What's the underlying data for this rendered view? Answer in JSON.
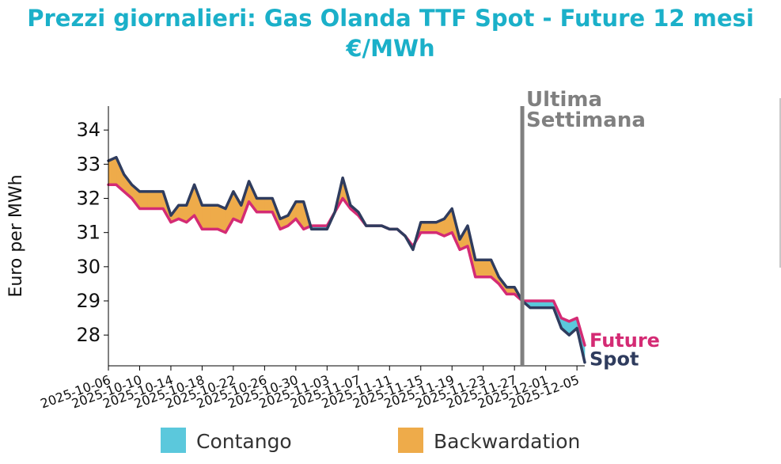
{
  "title": {
    "line1": "Prezzi giornalieri: Gas Olanda TTF Spot - Future 12 mesi",
    "line2": "€/MWh"
  },
  "chart_data": {
    "type": "area",
    "ylabel": "Euro per MWh",
    "y_ticks": [
      28,
      29,
      30,
      31,
      32,
      33,
      34
    ],
    "ylim": [
      27.1,
      34.7
    ],
    "x_range": [
      "2025-10-06",
      "2025-12-06"
    ],
    "x_tick_labels": [
      "2025-10-06",
      "2025-10-10",
      "2025-10-14",
      "2025-10-18",
      "2025-10-22",
      "2025-10-26",
      "2025-10-30",
      "2025-11-03",
      "2025-11-07",
      "2025-11-11",
      "2025-11-15",
      "2025-11-19",
      "2025-11-23",
      "2025-11-27",
      "2025-12-01",
      "2025-12-05"
    ],
    "marker": {
      "date": "2025-11-28",
      "label_line1": "Ultima",
      "label_line2": "Settimana",
      "color": "#808080"
    },
    "legend": [
      {
        "label": "Contango",
        "color": "#5bc8dc"
      },
      {
        "label": "Backwardation",
        "color": "#eeab4a"
      }
    ],
    "series": [
      {
        "name": "Spot",
        "color": "#2f3c5e",
        "points": [
          [
            "2025-10-06",
            33.1
          ],
          [
            "2025-10-07",
            33.2
          ],
          [
            "2025-10-08",
            32.7
          ],
          [
            "2025-10-09",
            32.4
          ],
          [
            "2025-10-10",
            32.2
          ],
          [
            "2025-10-11",
            32.2
          ],
          [
            "2025-10-12",
            32.2
          ],
          [
            "2025-10-13",
            32.2
          ],
          [
            "2025-10-14",
            31.5
          ],
          [
            "2025-10-15",
            31.8
          ],
          [
            "2025-10-16",
            31.8
          ],
          [
            "2025-10-17",
            32.4
          ],
          [
            "2025-10-18",
            31.8
          ],
          [
            "2025-10-19",
            31.8
          ],
          [
            "2025-10-20",
            31.8
          ],
          [
            "2025-10-21",
            31.7
          ],
          [
            "2025-10-22",
            32.2
          ],
          [
            "2025-10-23",
            31.8
          ],
          [
            "2025-10-24",
            32.5
          ],
          [
            "2025-10-25",
            32.0
          ],
          [
            "2025-10-26",
            32.0
          ],
          [
            "2025-10-27",
            32.0
          ],
          [
            "2025-10-28",
            31.4
          ],
          [
            "2025-10-29",
            31.5
          ],
          [
            "2025-10-30",
            31.9
          ],
          [
            "2025-10-31",
            31.9
          ],
          [
            "2025-11-01",
            31.1
          ],
          [
            "2025-11-02",
            31.1
          ],
          [
            "2025-11-03",
            31.1
          ],
          [
            "2025-11-04",
            31.6
          ],
          [
            "2025-11-05",
            32.6
          ],
          [
            "2025-11-06",
            31.8
          ],
          [
            "2025-11-07",
            31.6
          ],
          [
            "2025-11-08",
            31.2
          ],
          [
            "2025-11-09",
            31.2
          ],
          [
            "2025-11-10",
            31.2
          ],
          [
            "2025-11-11",
            31.1
          ],
          [
            "2025-11-12",
            31.1
          ],
          [
            "2025-11-13",
            30.9
          ],
          [
            "2025-11-14",
            30.5
          ],
          [
            "2025-11-15",
            31.3
          ],
          [
            "2025-11-16",
            31.3
          ],
          [
            "2025-11-17",
            31.3
          ],
          [
            "2025-11-18",
            31.4
          ],
          [
            "2025-11-19",
            31.7
          ],
          [
            "2025-11-20",
            30.8
          ],
          [
            "2025-11-21",
            31.2
          ],
          [
            "2025-11-22",
            30.2
          ],
          [
            "2025-11-23",
            30.2
          ],
          [
            "2025-11-24",
            30.2
          ],
          [
            "2025-11-25",
            29.7
          ],
          [
            "2025-11-26",
            29.4
          ],
          [
            "2025-11-27",
            29.4
          ],
          [
            "2025-11-28",
            29.0
          ],
          [
            "2025-11-29",
            28.8
          ],
          [
            "2025-11-30",
            28.8
          ],
          [
            "2025-12-01",
            28.8
          ],
          [
            "2025-12-02",
            28.8
          ],
          [
            "2025-12-03",
            28.2
          ],
          [
            "2025-12-04",
            28.0
          ],
          [
            "2025-12-05",
            28.2
          ],
          [
            "2025-12-06",
            27.2
          ]
        ]
      },
      {
        "name": "Future",
        "color": "#d42b74",
        "points": [
          [
            "2025-10-06",
            32.4
          ],
          [
            "2025-10-07",
            32.4
          ],
          [
            "2025-10-08",
            32.2
          ],
          [
            "2025-10-09",
            32.0
          ],
          [
            "2025-10-10",
            31.7
          ],
          [
            "2025-10-11",
            31.7
          ],
          [
            "2025-10-12",
            31.7
          ],
          [
            "2025-10-13",
            31.7
          ],
          [
            "2025-10-14",
            31.3
          ],
          [
            "2025-10-15",
            31.4
          ],
          [
            "2025-10-16",
            31.3
          ],
          [
            "2025-10-17",
            31.5
          ],
          [
            "2025-10-18",
            31.1
          ],
          [
            "2025-10-19",
            31.1
          ],
          [
            "2025-10-20",
            31.1
          ],
          [
            "2025-10-21",
            31.0
          ],
          [
            "2025-10-22",
            31.4
          ],
          [
            "2025-10-23",
            31.3
          ],
          [
            "2025-10-24",
            31.9
          ],
          [
            "2025-10-25",
            31.6
          ],
          [
            "2025-10-26",
            31.6
          ],
          [
            "2025-10-27",
            31.6
          ],
          [
            "2025-10-28",
            31.1
          ],
          [
            "2025-10-29",
            31.2
          ],
          [
            "2025-10-30",
            31.4
          ],
          [
            "2025-10-31",
            31.1
          ],
          [
            "2025-11-01",
            31.2
          ],
          [
            "2025-11-02",
            31.2
          ],
          [
            "2025-11-03",
            31.2
          ],
          [
            "2025-11-04",
            31.6
          ],
          [
            "2025-11-05",
            32.0
          ],
          [
            "2025-11-06",
            31.7
          ],
          [
            "2025-11-07",
            31.5
          ],
          [
            "2025-11-08",
            31.2
          ],
          [
            "2025-11-09",
            31.2
          ],
          [
            "2025-11-10",
            31.2
          ],
          [
            "2025-11-11",
            31.1
          ],
          [
            "2025-11-12",
            31.1
          ],
          [
            "2025-11-13",
            30.9
          ],
          [
            "2025-11-14",
            30.6
          ],
          [
            "2025-11-15",
            31.0
          ],
          [
            "2025-11-16",
            31.0
          ],
          [
            "2025-11-17",
            31.0
          ],
          [
            "2025-11-18",
            30.9
          ],
          [
            "2025-11-19",
            31.0
          ],
          [
            "2025-11-20",
            30.5
          ],
          [
            "2025-11-21",
            30.6
          ],
          [
            "2025-11-22",
            29.7
          ],
          [
            "2025-11-23",
            29.7
          ],
          [
            "2025-11-24",
            29.7
          ],
          [
            "2025-11-25",
            29.5
          ],
          [
            "2025-11-26",
            29.2
          ],
          [
            "2025-11-27",
            29.2
          ],
          [
            "2025-11-28",
            29.0
          ],
          [
            "2025-11-29",
            29.0
          ],
          [
            "2025-11-30",
            29.0
          ],
          [
            "2025-12-01",
            29.0
          ],
          [
            "2025-12-02",
            29.0
          ],
          [
            "2025-12-03",
            28.5
          ],
          [
            "2025-12-04",
            28.4
          ],
          [
            "2025-12-05",
            28.5
          ],
          [
            "2025-12-06",
            27.7
          ]
        ]
      }
    ]
  }
}
